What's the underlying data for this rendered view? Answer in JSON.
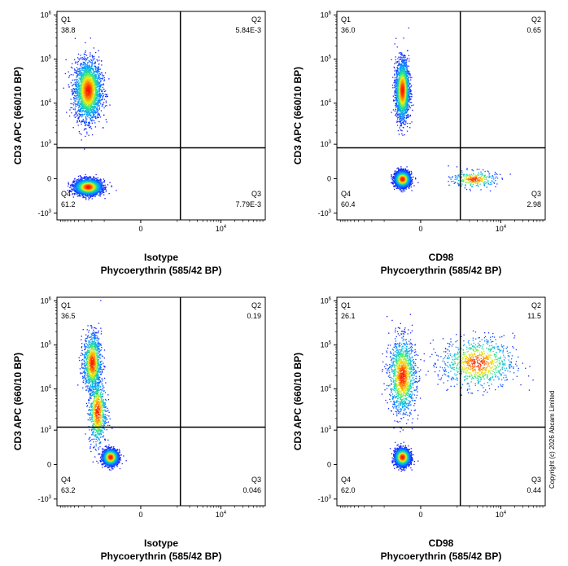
{
  "chart_data": [
    {
      "type": "scatter",
      "panel": "top-left",
      "xlabel_line1": "Isotype",
      "xlabel_line2": "Phycoerythrin (585/42 BP)",
      "ylabel": "CD3 APC (660/10 BP)",
      "y_ticks": [
        "10^6",
        "10^5",
        "10^4",
        "10^3",
        "0",
        "-10^3"
      ],
      "x_ticks": [
        "0",
        "10^4"
      ],
      "quadrants": [
        {
          "name": "Q1",
          "value": "38.8"
        },
        {
          "name": "Q2",
          "value": "5.84E-3"
        },
        {
          "name": "Q3",
          "value": "7.79E-3"
        },
        {
          "name": "Q4",
          "value": "61.2"
        }
      ],
      "gate_x": 1200,
      "gate_y": 800,
      "clusters": [
        {
          "x": -2500,
          "y": 20000,
          "sx": 0.09,
          "sy": 0.35,
          "n": 2600
        },
        {
          "x": -2500,
          "y": -100,
          "sx": 0.09,
          "sy": 0.09,
          "n": 3000
        }
      ]
    },
    {
      "type": "scatter",
      "panel": "top-right",
      "xlabel_line1": "CD98",
      "xlabel_line2": "Phycoerythrin (585/42 BP)",
      "ylabel": "CD3 APC (660/10 BP)",
      "y_ticks": [
        "10^6",
        "10^5",
        "10^4",
        "10^3",
        "0",
        "-10^3"
      ],
      "x_ticks": [
        "0",
        "10^4"
      ],
      "quadrants": [
        {
          "name": "Q1",
          "value": "36.0"
        },
        {
          "name": "Q2",
          "value": "0.65"
        },
        {
          "name": "Q3",
          "value": "2.98"
        },
        {
          "name": "Q4",
          "value": "60.4"
        }
      ],
      "gate_x": 1200,
      "gate_y": 800,
      "clusters": [
        {
          "x": -300,
          "y": 20000,
          "sx": 0.045,
          "sy": 0.35,
          "n": 2300
        },
        {
          "x": -300,
          "y": 0,
          "sx": 0.05,
          "sy": 0.09,
          "n": 2800
        },
        {
          "x": 2500,
          "y": 0,
          "sx": 0.15,
          "sy": 0.1,
          "n": 300
        }
      ]
    },
    {
      "type": "scatter",
      "panel": "bottom-left",
      "xlabel_line1": "Isotype",
      "xlabel_line2": "Phycoerythrin (585/42 BP)",
      "ylabel": "CD3 APC (660/10 BP)",
      "y_ticks": [
        "10^6",
        "10^5",
        "10^4",
        "10^3",
        "0",
        "-10^3"
      ],
      "x_ticks": [
        "0",
        "10^4"
      ],
      "quadrants": [
        {
          "name": "Q1",
          "value": "36.5"
        },
        {
          "name": "Q2",
          "value": "0.19"
        },
        {
          "name": "Q3",
          "value": "0.046"
        },
        {
          "name": "Q4",
          "value": "63.2"
        }
      ],
      "gate_x": 1200,
      "gate_y": 1200,
      "clusters": [
        {
          "x": -2000,
          "y": 40000,
          "sx": 0.06,
          "sy": 0.35,
          "n": 1200
        },
        {
          "x": -1500,
          "y": 3000,
          "sx": 0.06,
          "sy": 0.4,
          "n": 800
        },
        {
          "x": -700,
          "y": 100,
          "sx": 0.05,
          "sy": 0.09,
          "n": 2200
        }
      ]
    },
    {
      "type": "scatter",
      "panel": "bottom-right",
      "xlabel_line1": "CD98",
      "xlabel_line2": "Phycoerythrin (585/42 BP)",
      "ylabel": "CD3 APC (660/10 BP)",
      "y_ticks": [
        "10^6",
        "10^5",
        "10^4",
        "10^3",
        "0",
        "-10^3"
      ],
      "x_ticks": [
        "0",
        "10^4"
      ],
      "quadrants": [
        {
          "name": "Q1",
          "value": "26.1"
        },
        {
          "name": "Q2",
          "value": "11.5"
        },
        {
          "name": "Q3",
          "value": "0.44"
        },
        {
          "name": "Q4",
          "value": "62.0"
        }
      ],
      "gate_x": 1200,
      "gate_y": 1200,
      "clusters": [
        {
          "x": -300,
          "y": 20000,
          "sx": 0.09,
          "sy": 0.45,
          "n": 1400
        },
        {
          "x": 3000,
          "y": 40000,
          "sx": 0.25,
          "sy": 0.3,
          "n": 900
        },
        {
          "x": -300,
          "y": 100,
          "sx": 0.05,
          "sy": 0.1,
          "n": 2600
        }
      ]
    }
  ],
  "copyright": "Copyright (c) 2026 Abcam Limited",
  "colors": {
    "density_low": "#0000ff",
    "density_mid": "#00c0ff",
    "density_high": "#ffff00",
    "density_max": "#ff0000",
    "axis": "#000000"
  }
}
